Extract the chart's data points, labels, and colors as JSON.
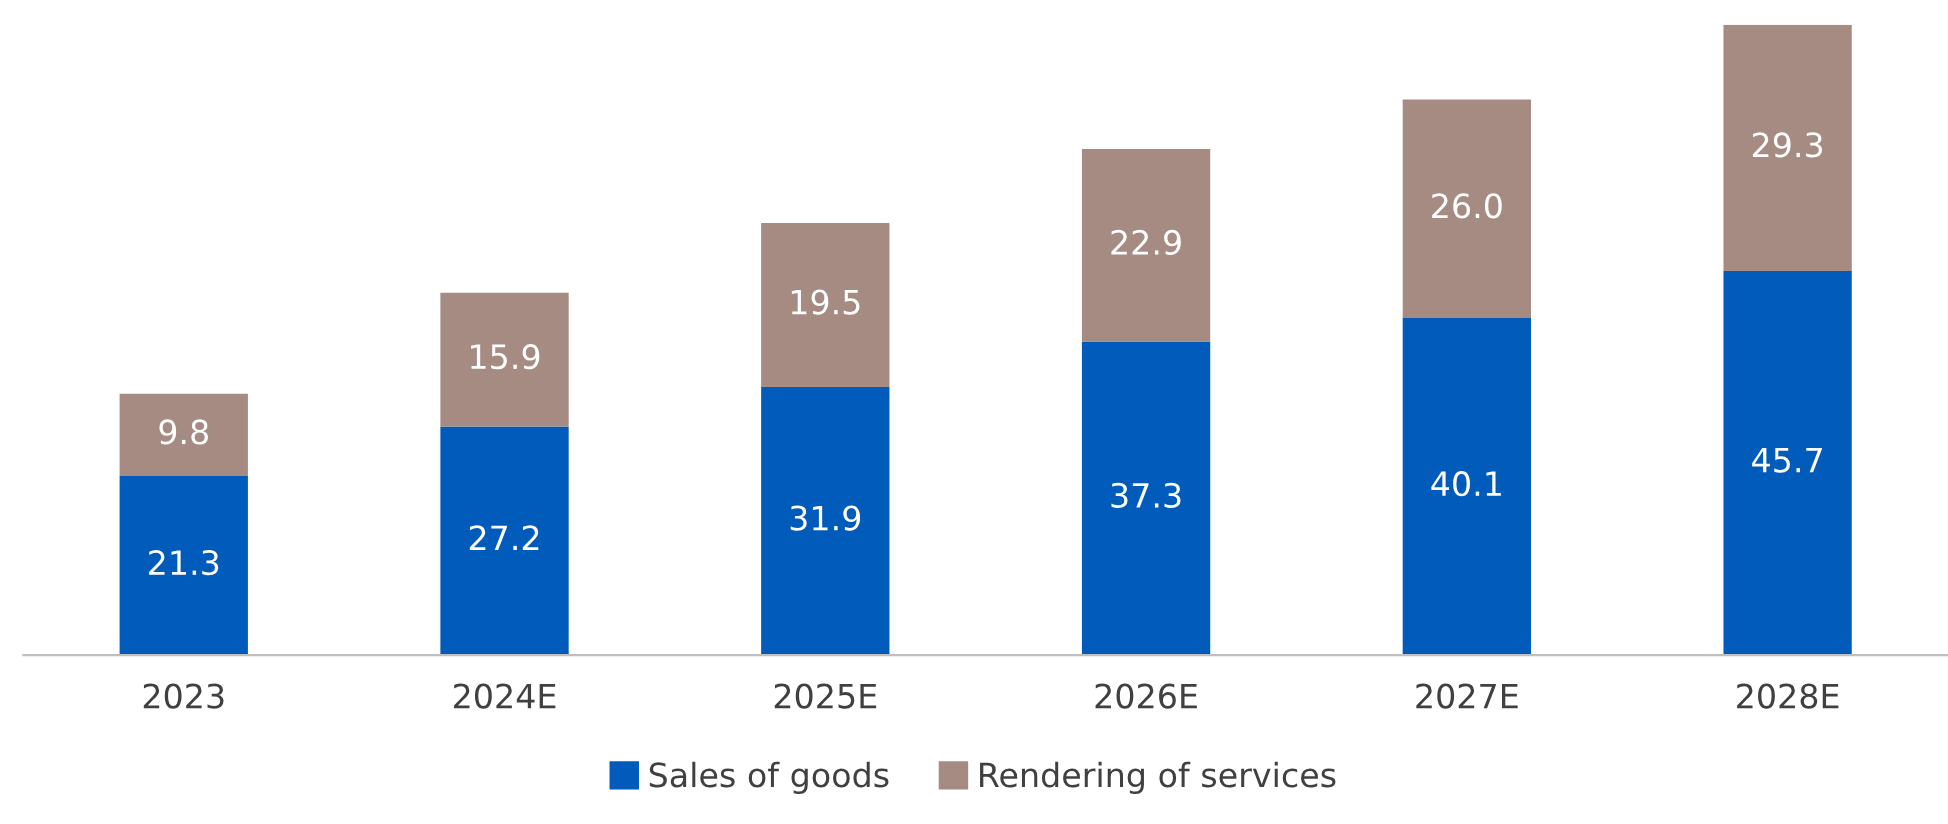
{
  "chart_data": {
    "type": "bar",
    "stacked": true,
    "legend": "bottom",
    "grid": false,
    "categories": [
      "2023",
      "2024E",
      "2025E",
      "2026E",
      "2027E",
      "2028E"
    ],
    "series": [
      {
        "name": "Sales of goods",
        "color": "#005bbb",
        "values": [
          21.3,
          27.2,
          31.9,
          37.3,
          40.1,
          45.7
        ],
        "value_labels": [
          "21.3",
          "27.2",
          "31.9",
          "37.3",
          "40.1",
          "45.7"
        ]
      },
      {
        "name": "Rendering of services",
        "color": "#a68b82",
        "values": [
          9.8,
          15.9,
          19.5,
          22.9,
          26.0,
          29.3
        ],
        "value_labels": [
          "9.8",
          "15.9",
          "19.5",
          "22.9",
          "26.0",
          "29.3"
        ]
      }
    ]
  }
}
